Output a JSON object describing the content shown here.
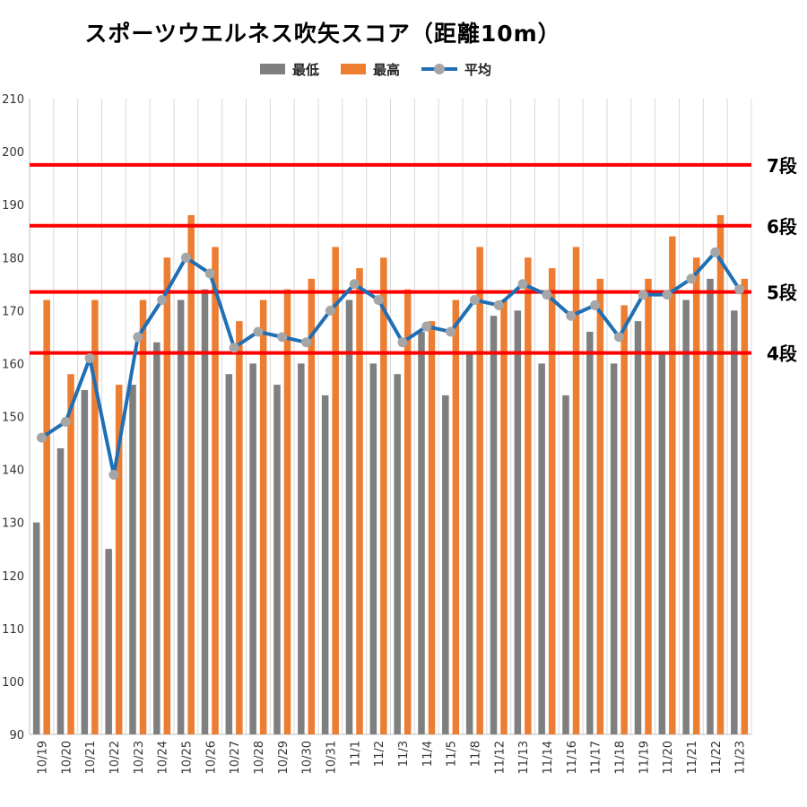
{
  "chart_data": {
    "type": "bar",
    "title": "スポーツウエルネス吹矢スコア（距離10m）",
    "categories": [
      "10/19",
      "10/20",
      "10/21",
      "10/22",
      "10/23",
      "10/24",
      "10/25",
      "10/26",
      "10/27",
      "10/28",
      "10/29",
      "10/30",
      "10/31",
      "11/1",
      "11/2",
      "11/3",
      "11/4",
      "11/5",
      "11/8",
      "11/12",
      "11/13",
      "11/14",
      "11/16",
      "11/17",
      "11/18",
      "11/19",
      "11/20",
      "11/21",
      "11/22",
      "11/23"
    ],
    "series": [
      {
        "name": "最低",
        "type": "bar",
        "color": "#7f7f7f",
        "values": [
          130,
          144,
          155,
          125,
          156,
          164,
          172,
          174,
          158,
          160,
          156,
          160,
          154,
          172,
          160,
          158,
          166,
          154,
          162,
          169,
          170,
          160,
          154,
          166,
          160,
          168,
          162,
          172,
          176,
          170
        ]
      },
      {
        "name": "最高",
        "type": "bar",
        "color": "#ed7d31",
        "values": [
          172,
          158,
          172,
          156,
          172,
          180,
          188,
          182,
          168,
          172,
          174,
          176,
          182,
          178,
          180,
          174,
          168,
          172,
          182,
          172,
          180,
          178,
          182,
          176,
          171,
          176,
          184,
          180,
          188,
          176
        ]
      },
      {
        "name": "平均",
        "type": "line",
        "color": "#1f6fb5",
        "marker_color": "#a6a6a6",
        "values": [
          146,
          149,
          161,
          139,
          165,
          172,
          180,
          177,
          163,
          166,
          165,
          164,
          170,
          175,
          172,
          164,
          167,
          166,
          172,
          171,
          175,
          173,
          169,
          171,
          165,
          173,
          173,
          176,
          181,
          174
        ]
      }
    ],
    "ylim": [
      90,
      210
    ],
    "yticks": [
      90,
      100,
      110,
      120,
      130,
      140,
      150,
      160,
      170,
      180,
      190,
      200,
      210
    ],
    "xlabel": "",
    "ylabel": "",
    "grid": "vertical",
    "legend_position": "top",
    "reference_lines": [
      {
        "label": "7段",
        "value": 197.5,
        "color": "#ff0000"
      },
      {
        "label": "6段",
        "value": 186,
        "color": "#ff0000"
      },
      {
        "label": "5段",
        "value": 173.5,
        "color": "#ff0000"
      },
      {
        "label": "4段",
        "value": 162,
        "color": "#ff0000"
      }
    ]
  }
}
